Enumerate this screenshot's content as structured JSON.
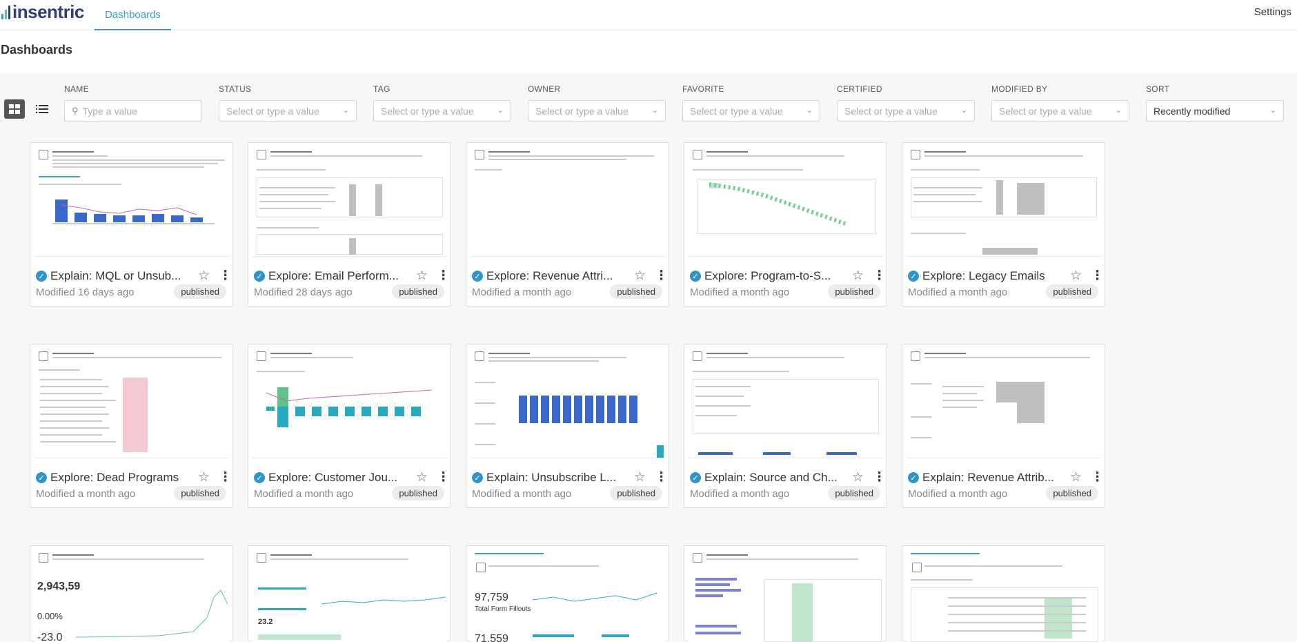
{
  "app": {
    "brand": "insentric",
    "nav_tab": "Dashboards",
    "settings_label": "Settings"
  },
  "page": {
    "title": "Dashboards"
  },
  "filters": [
    {
      "label": "NAME",
      "placeholder": "Type a value",
      "kind": "search"
    },
    {
      "label": "STATUS",
      "placeholder": "Select or type a value",
      "kind": "select"
    },
    {
      "label": "TAG",
      "placeholder": "Select or type a value",
      "kind": "select"
    },
    {
      "label": "OWNER",
      "placeholder": "Select or type a value",
      "kind": "select"
    },
    {
      "label": "FAVORITE",
      "placeholder": "Select or type a value",
      "kind": "select"
    },
    {
      "label": "CERTIFIED",
      "placeholder": "Select or type a value",
      "kind": "select"
    },
    {
      "label": "MODIFIED BY",
      "placeholder": "Select or type a value",
      "kind": "select"
    },
    {
      "label": "SORT",
      "value": "Recently modified",
      "kind": "select"
    }
  ],
  "cards": [
    {
      "title": "Explain: MQL or Unsub...",
      "modified": "Modified 16 days ago",
      "status": "published"
    },
    {
      "title": "Explore: Email Perform...",
      "modified": "Modified 28 days ago",
      "status": "published"
    },
    {
      "title": "Explore: Revenue Attri...",
      "modified": "Modified a month ago",
      "status": "published"
    },
    {
      "title": "Explore: Program-to-S...",
      "modified": "Modified a month ago",
      "status": "published"
    },
    {
      "title": "Explore: Legacy Emails",
      "modified": "Modified a month ago",
      "status": "published"
    },
    {
      "title": "Explore: Dead Programs",
      "modified": "Modified a month ago",
      "status": "published"
    },
    {
      "title": "Explore: Customer Jou...",
      "modified": "Modified a month ago",
      "status": "published"
    },
    {
      "title": "Explain: Unsubscribe L...",
      "modified": "Modified a month ago",
      "status": "published"
    },
    {
      "title": "Explain: Source and Ch...",
      "modified": "Modified a month ago",
      "status": "published"
    },
    {
      "title": "Explain: Revenue Attrib...",
      "modified": "Modified a month ago",
      "status": "published"
    }
  ],
  "partial_cards": [
    {
      "values": [
        "2,943,59",
        "0.00%",
        "-23.0"
      ]
    },
    {
      "values": [
        "23.2"
      ]
    },
    {
      "values": [
        "97,759",
        "Total Form Fillouts",
        "71,559"
      ]
    },
    {
      "values": []
    },
    {
      "values": []
    }
  ],
  "colors": {
    "accent": "#3d9cc4",
    "certified": "#2f95c8",
    "brand": "#2f3f7a",
    "bar": "#3a68c9",
    "bar_teal": "#27aac0"
  },
  "icons": {
    "grid_view": "grid-view-icon",
    "list_view": "list-view-icon",
    "certified": "certified-check-icon",
    "favorite": "star-icon",
    "more": "more-vertical-icon"
  }
}
